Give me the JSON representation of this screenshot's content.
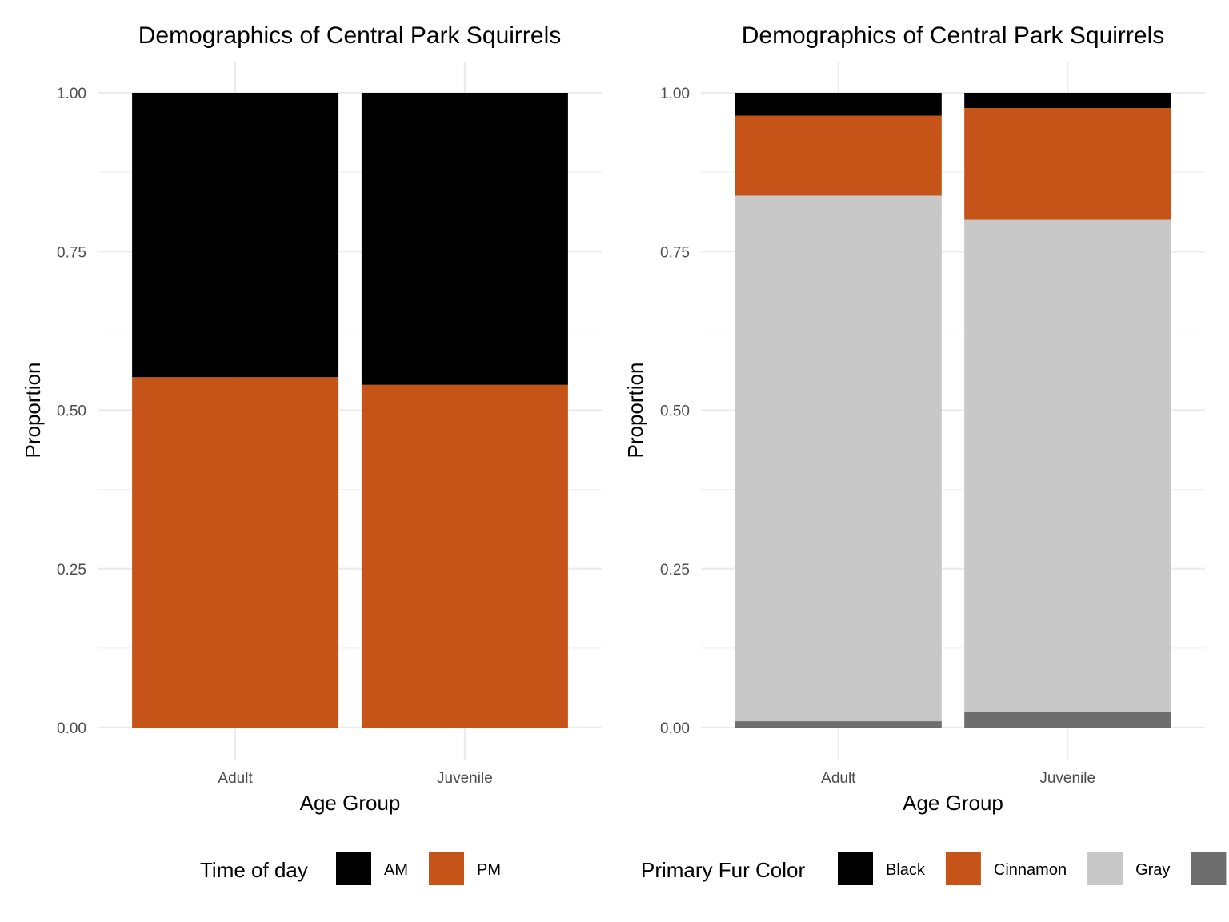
{
  "chart_data": [
    {
      "type": "bar",
      "stacked": true,
      "title": "Demographics of Central Park Squirrels",
      "xlabel": "Age Group",
      "ylabel": "Proportion",
      "categories": [
        "Adult",
        "Juvenile"
      ],
      "ylim": [
        0,
        1
      ],
      "yticks": [
        "0.00",
        "0.25",
        "0.50",
        "0.75",
        "1.00"
      ],
      "grid": true,
      "legend_position": "bottom",
      "legend_title": "Time of day",
      "series": [
        {
          "name": "AM",
          "color": "#000000",
          "values": [
            0.448,
            0.46
          ]
        },
        {
          "name": "PM",
          "color": "#c65418",
          "values": [
            0.552,
            0.54
          ]
        }
      ]
    },
    {
      "type": "bar",
      "stacked": true,
      "title": "Demographics of Central Park Squirrels",
      "xlabel": "Age Group",
      "ylabel": "Proportion",
      "categories": [
        "Adult",
        "Juvenile"
      ],
      "ylim": [
        0,
        1
      ],
      "yticks": [
        "0.00",
        "0.25",
        "0.50",
        "0.75",
        "1.00"
      ],
      "grid": true,
      "legend_position": "bottom",
      "legend_title": "Primary Fur Color",
      "series": [
        {
          "name": "Black",
          "color": "#000000",
          "values": [
            0.036,
            0.024
          ]
        },
        {
          "name": "Cinnamon",
          "color": "#c65418",
          "values": [
            0.126,
            0.176
          ]
        },
        {
          "name": "Gray",
          "color": "#c8c8c8",
          "values": [
            0.828,
            0.776
          ]
        },
        {
          "name": "",
          "color": "#6e6e6e",
          "values": [
            0.01,
            0.024
          ]
        }
      ]
    }
  ]
}
